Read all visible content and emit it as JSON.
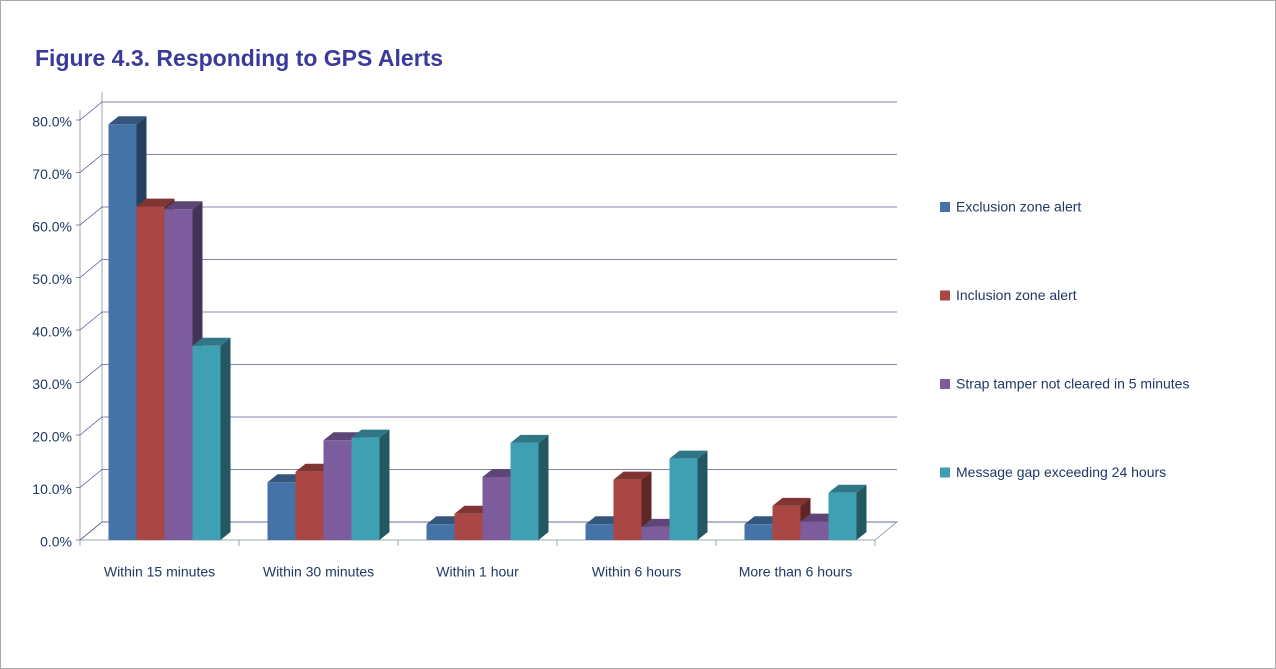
{
  "chart_data": {
    "type": "bar3d",
    "title": "Figure 4.3. Responding to GPS Alerts",
    "categories": [
      "Within 15 minutes",
      "Within 30 minutes",
      "Within 1 hour",
      "Within 6 hours",
      "More than 6 hours"
    ],
    "series": [
      {
        "name": "Exclusion zone alert",
        "color": "#4572a7",
        "values": [
          79.2,
          11,
          3,
          3,
          3
        ]
      },
      {
        "name": "Inclusion zone alert",
        "color": "#aa4643",
        "values": [
          63.5,
          13,
          5,
          11.5,
          6.5
        ]
      },
      {
        "name": "Strap tamper not cleared in 5 minutes",
        "color": "#7c5c9c",
        "values": [
          63,
          19,
          12,
          2.5,
          3.5
        ]
      },
      {
        "name": "Message gap exceeding 24 hours",
        "color": "#3f9fb3",
        "values": [
          37,
          19.5,
          18.5,
          15.5,
          9
        ]
      }
    ],
    "ylim": [
      0,
      80
    ],
    "yticks": [
      {
        "value": 0,
        "label": "0.0%"
      },
      {
        "value": 10,
        "label": "10.0%"
      },
      {
        "value": 20,
        "label": "20.0%"
      },
      {
        "value": 30,
        "label": "30.0%"
      },
      {
        "value": 40,
        "label": "40.0%"
      },
      {
        "value": 50,
        "label": "50.0%"
      },
      {
        "value": 60,
        "label": "60.0%"
      },
      {
        "value": 70,
        "label": "70.0%"
      },
      {
        "value": 80,
        "label": "80.0%"
      }
    ],
    "grid": true,
    "legend": "right"
  }
}
